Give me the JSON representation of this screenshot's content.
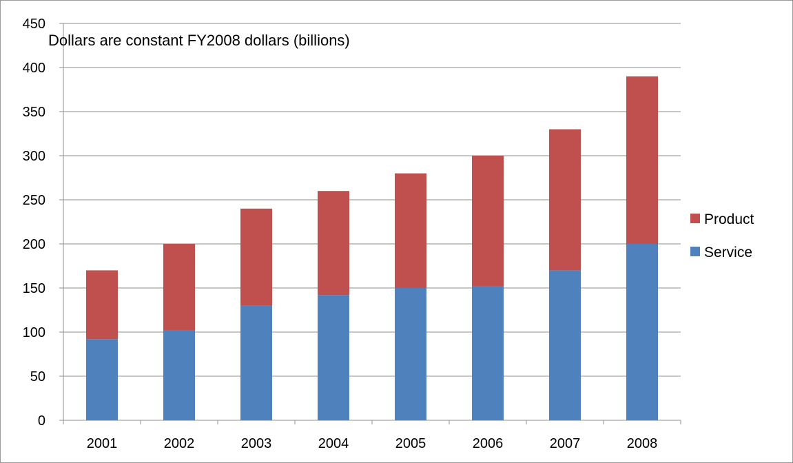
{
  "chart_data": {
    "type": "bar",
    "stacked": true,
    "annotation": "Dollars are constant FY2008 dollars (billions)",
    "title": "",
    "xlabel": "",
    "ylabel": "",
    "categories": [
      "2001",
      "2002",
      "2003",
      "2004",
      "2005",
      "2006",
      "2007",
      "2008"
    ],
    "series": [
      {
        "name": "Service",
        "color": "#4f81bd",
        "values": [
          92,
          102,
          130,
          142,
          150,
          152,
          170,
          200
        ]
      },
      {
        "name": "Product",
        "color": "#c0504d",
        "values": [
          78,
          98,
          110,
          118,
          130,
          148,
          160,
          190
        ]
      }
    ],
    "ylim": [
      0,
      450
    ],
    "yticks": [
      "0",
      "50",
      "100",
      "150",
      "200",
      "250",
      "300",
      "350",
      "400",
      "450"
    ],
    "grid": true,
    "legend_position": "right",
    "legend_order": [
      "Product",
      "Service"
    ]
  }
}
